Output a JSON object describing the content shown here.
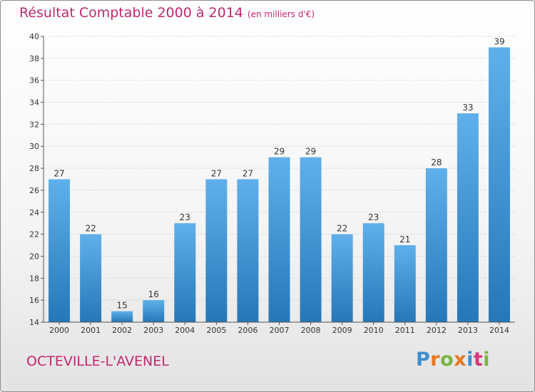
{
  "title": "Résultat Comptable 2000 à 2014",
  "unit": "(en milliers d'€)",
  "commune": "OCTEVILLE-L'AVENEL",
  "logo": {
    "letters": [
      "P",
      "r",
      "o",
      "x",
      "i",
      "t",
      "i"
    ],
    "colors": [
      "#3c8fcf",
      "#e8771e",
      "#7ab642",
      "#e8771e",
      "#3c8fcf",
      "#d5387a",
      "#7ab642"
    ]
  },
  "colors": {
    "bar_top": "#5fb0ea",
    "bar_bottom": "#2577b8",
    "title": "#c0276f"
  },
  "chart_data": {
    "type": "bar",
    "title": "Résultat Comptable 2000 à 2014",
    "ylabel": "(en milliers d'€)",
    "xlabel": "",
    "categories": [
      "2000",
      "2001",
      "2002",
      "2003",
      "2004",
      "2005",
      "2006",
      "2007",
      "2008",
      "2009",
      "2010",
      "2011",
      "2012",
      "2013",
      "2014"
    ],
    "values": [
      27,
      22,
      15,
      16,
      23,
      27,
      27,
      29,
      29,
      22,
      23,
      21,
      28,
      33,
      39
    ],
    "ylim": [
      14,
      40
    ],
    "yticks": [
      14,
      16,
      18,
      20,
      22,
      24,
      26,
      28,
      30,
      32,
      34,
      36,
      38,
      40
    ],
    "grid": true
  }
}
